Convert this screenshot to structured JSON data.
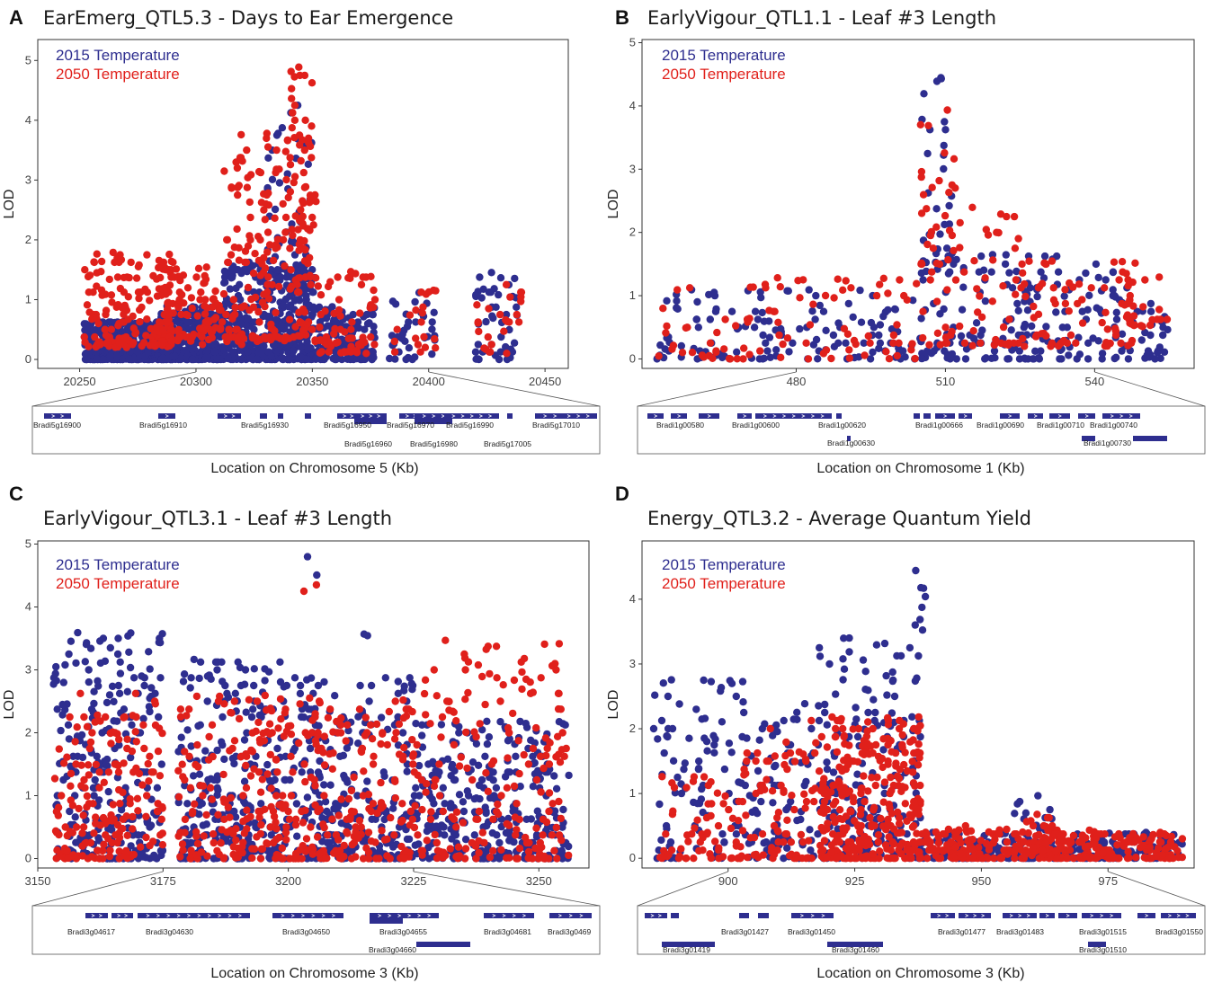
{
  "colors": {
    "t2015": "#2e2e8f",
    "t2050": "#e0201b",
    "gene_bar": "#2e2e8f"
  },
  "legend": {
    "t2015": "2015 Temperature",
    "t2050": "2050 Temperature"
  },
  "chart_data": [
    {
      "panel_label": "A",
      "type": "scatter",
      "title": "EarEmerg_QTL5.3 - Days to Ear Emergence",
      "xlabel": "Location on Chromosome 5 (Kb)",
      "ylabel": "LOD",
      "xlim": [
        20232,
        20460
      ],
      "ylim": [
        -0.15,
        5.35
      ],
      "xticks": [
        20250,
        20300,
        20350,
        20400,
        20450
      ],
      "yticks": [
        0,
        1,
        2,
        3,
        4,
        5
      ],
      "legend_position": "top-left",
      "grid": false,
      "zoom_range": [
        20300,
        20400
      ],
      "series": [
        {
          "name": "2015 Temperature",
          "segments": [
            [
              20252,
              20290,
              0.0,
              0.65,
              420
            ],
            [
              20285,
              20312,
              0.0,
              0.9,
              300
            ],
            [
              20312,
              20352,
              0.0,
              1.6,
              420
            ],
            [
              20330,
              20350,
              1.2,
              4.2,
              60
            ],
            [
              20352,
              20377,
              0.0,
              0.9,
              150
            ],
            [
              20383,
              20403,
              0.0,
              1.2,
              35
            ],
            [
              20420,
              20438,
              0.0,
              1.5,
              45
            ]
          ]
        },
        {
          "name": "2050 Temperature",
          "segments": [
            [
              20252,
              20290,
              0.2,
              1.8,
              160
            ],
            [
              20285,
              20312,
              0.3,
              1.6,
              110
            ],
            [
              20312,
              20352,
              0.3,
              3.8,
              200
            ],
            [
              20340,
              20350,
              2.0,
              5.05,
              35
            ],
            [
              20352,
              20377,
              0.1,
              1.5,
              70
            ],
            [
              20383,
              20403,
              0.1,
              1.2,
              20
            ],
            [
              20420,
              20440,
              0.1,
              1.2,
              25
            ]
          ]
        }
      ],
      "genes": [
        {
          "name": "Bradi5g16900",
          "highlight": false
        },
        {
          "name": "Bradi5g16910",
          "highlight": true
        },
        {
          "name": "Bradi5g16930",
          "highlight": false
        },
        {
          "name": "Bradi5g16950",
          "highlight": false
        },
        {
          "name": "Bradi5g16960",
          "highlight": false
        },
        {
          "name": "Bradi5g16970",
          "highlight": false
        },
        {
          "name": "Bradi5g16980",
          "highlight": false
        },
        {
          "name": "Bradi5g16990",
          "highlight": false
        },
        {
          "name": "Bradi5g17005",
          "highlight": false
        },
        {
          "name": "Bradi5g17010",
          "highlight": false
        }
      ]
    },
    {
      "panel_label": "B",
      "type": "scatter",
      "title": "EarlyVigour_QTL1.1 - Leaf #3 Length",
      "xlabel": "Location on Chromosome 1 (Kb)",
      "ylabel": "LOD",
      "xlim": [
        449,
        560
      ],
      "ylim": [
        -0.15,
        5.05
      ],
      "xticks": [
        480,
        510,
        540
      ],
      "yticks": [
        0,
        1,
        2,
        3,
        4,
        5
      ],
      "legend_position": "top-left",
      "grid": false,
      "zoom_range": [
        480,
        540
      ],
      "series": [
        {
          "name": "2015 Temperature",
          "segments": [
            [
              452,
              505,
              0.0,
              1.1,
              130
            ],
            [
              505,
              512,
              1.5,
              4.6,
              30
            ],
            [
              505,
              525,
              0.0,
              1.7,
              90
            ],
            [
              525,
              548,
              0.0,
              1.7,
              100
            ],
            [
              548,
              555,
              0.0,
              0.9,
              25
            ]
          ]
        },
        {
          "name": "2050 Temperature",
          "segments": [
            [
              452,
              505,
              0.0,
              1.3,
              90
            ],
            [
              505,
              512,
              1.5,
              4.85,
              25
            ],
            [
              505,
              525,
              0.2,
              2.6,
              60
            ],
            [
              525,
              548,
              0.2,
              1.6,
              70
            ],
            [
              546,
              555,
              0.5,
              1.6,
              25
            ]
          ]
        }
      ],
      "genes": [
        {
          "name": "Bradi1g00580",
          "highlight": false
        },
        {
          "name": "Bradi1g00600",
          "highlight": false
        },
        {
          "name": "Bradi1g00620",
          "highlight": false
        },
        {
          "name": "Bradi1g00630",
          "highlight": false
        },
        {
          "name": "Bradi1g00666",
          "highlight": true
        },
        {
          "name": "Bradi1g00690",
          "highlight": false
        },
        {
          "name": "Bradi1g00710",
          "highlight": false
        },
        {
          "name": "Bradi1g00740",
          "highlight": false
        },
        {
          "name": "Bradi1g00730",
          "highlight": false
        }
      ]
    },
    {
      "panel_label": "C",
      "type": "scatter",
      "title": "EarlyVigour_QTL3.1 - Leaf #3 Length",
      "xlabel": "Location on Chromosome 3 (Kb)",
      "ylabel": "LOD",
      "xlim": [
        3150,
        3260
      ],
      "ylim": [
        -0.15,
        5.05
      ],
      "xticks": [
        3150,
        3175,
        3200,
        3225,
        3250
      ],
      "yticks": [
        0,
        1,
        2,
        3,
        4,
        5
      ],
      "legend_position": "top-left",
      "grid": false,
      "zoom_range": [
        3175,
        3225
      ],
      "series": [
        {
          "name": "2015 Temperature",
          "segments": [
            [
              3153,
              3175,
              0.0,
              3.6,
              260
            ],
            [
              3178,
              3200,
              0.0,
              3.2,
              260
            ],
            [
              3200,
              3225,
              0.0,
              2.9,
              260
            ],
            [
              3225,
              3256,
              0.0,
              2.2,
              300
            ],
            [
              3203,
              3206,
              4.5,
              4.8,
              2
            ],
            [
              3214,
              3216,
              3.4,
              3.6,
              2
            ]
          ]
        },
        {
          "name": "2050 Temperature",
          "segments": [
            [
              3153,
              3175,
              0.0,
              2.6,
              180
            ],
            [
              3178,
              3200,
              0.0,
              2.6,
              180
            ],
            [
              3200,
              3225,
              0.0,
              2.6,
              200
            ],
            [
              3225,
              3256,
              0.0,
              3.5,
              200
            ],
            [
              3203,
              3206,
              4.3,
              4.45,
              2
            ]
          ]
        }
      ],
      "genes": [
        {
          "name": "Bradi3g04617",
          "highlight": false
        },
        {
          "name": "Bradi3g04630",
          "highlight": false
        },
        {
          "name": "Bradi3g04650",
          "highlight": false
        },
        {
          "name": "Bradi3g04655",
          "highlight": false
        },
        {
          "name": "Bradi3g04660",
          "highlight": false
        },
        {
          "name": "Bradi3g04681",
          "highlight": false
        },
        {
          "name": "Bradi3g0469",
          "highlight": false
        }
      ]
    },
    {
      "panel_label": "D",
      "type": "scatter",
      "title": "Energy_QTL3.2 - Average Quantum Yield",
      "xlabel": "Location on Chromosome 3 (Kb)",
      "ylabel": "LOD",
      "xlim": [
        883,
        992
      ],
      "ylim": [
        -0.15,
        4.9
      ],
      "xticks": [
        900,
        925,
        950,
        975
      ],
      "yticks": [
        0,
        1,
        2,
        3,
        4
      ],
      "legend_position": "top-left",
      "grid": false,
      "zoom_range": [
        900,
        975
      ],
      "series": [
        {
          "name": "2015 Temperature",
          "segments": [
            [
              885,
              903,
              0.0,
              2.8,
              90
            ],
            [
              903,
              918,
              0.0,
              2.4,
              90
            ],
            [
              918,
              938,
              0.0,
              3.5,
              200
            ],
            [
              936,
              939,
              3.5,
              4.8,
              8
            ],
            [
              938,
              990,
              0.0,
              0.4,
              250
            ],
            [
              955,
              965,
              0.3,
              1.0,
              15
            ]
          ]
        },
        {
          "name": "2050 Temperature",
          "segments": [
            [
              885,
              903,
              0.0,
              1.3,
              70
            ],
            [
              903,
              918,
              0.0,
              2.2,
              80
            ],
            [
              918,
              938,
              0.0,
              2.2,
              320
            ],
            [
              938,
              990,
              0.0,
              0.45,
              300
            ],
            [
              958,
              966,
              0.1,
              0.7,
              25
            ]
          ]
        }
      ],
      "genes": [
        {
          "name": "Bradi3g01419",
          "highlight": false
        },
        {
          "name": "Bradi3g01427",
          "highlight": false
        },
        {
          "name": "Bradi3g01450",
          "highlight": false
        },
        {
          "name": "Bradi3g01460",
          "highlight": false
        },
        {
          "name": "Bradi3g01477",
          "highlight": true
        },
        {
          "name": "Bradi3g01483",
          "highlight": false
        },
        {
          "name": "Bradi3g01515",
          "highlight": false
        },
        {
          "name": "Bradi3g01510",
          "highlight": false
        },
        {
          "name": "Bradi3g01550",
          "highlight": true
        }
      ]
    }
  ]
}
